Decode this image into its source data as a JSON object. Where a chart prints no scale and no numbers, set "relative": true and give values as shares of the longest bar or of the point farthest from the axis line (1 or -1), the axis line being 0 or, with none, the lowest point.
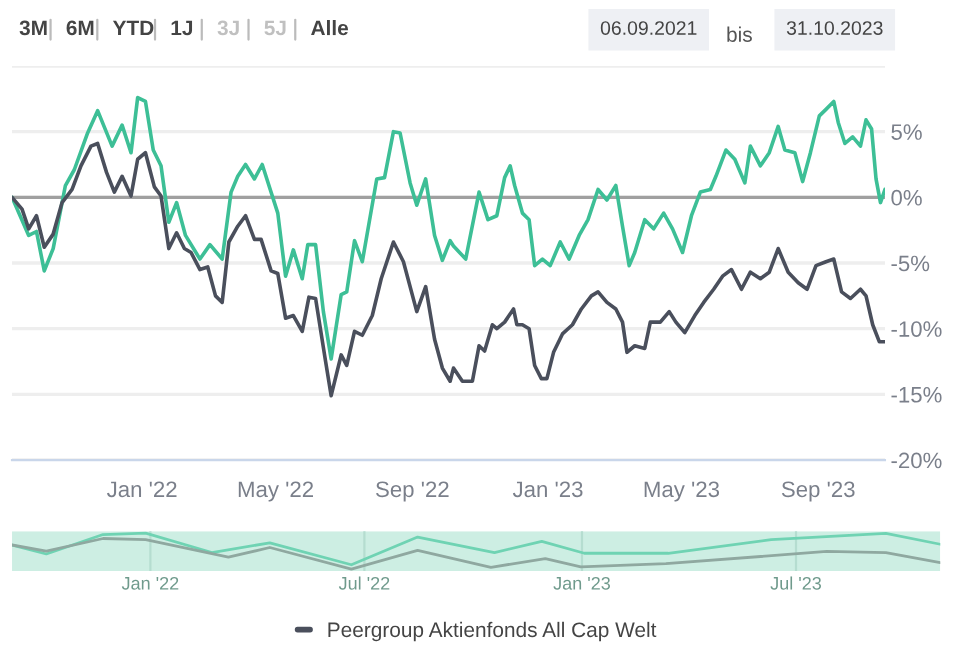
{
  "chart_data": [
    {
      "type": "line",
      "annotations": [
        "3M",
        "6M",
        "YTD",
        "1J",
        "3J",
        "5J",
        "Alle",
        "06.09.2021",
        "bis",
        "31.10.2023"
      ],
      "xlim": [
        "2021-09-06",
        "2023-10-31"
      ],
      "xticks": [
        {
          "value": "2022-01-01",
          "label": "Jan '22"
        },
        {
          "value": "2022-05-01",
          "label": "May '22"
        },
        {
          "value": "2022-09-01",
          "label": "Sep '22"
        },
        {
          "value": "2023-01-01",
          "label": "Jan '23"
        },
        {
          "value": "2023-05-01",
          "label": "May '23"
        },
        {
          "value": "2023-09-01",
          "label": "Sep '23"
        }
      ],
      "ylim": [
        -20,
        10
      ],
      "yticks": [
        {
          "value": -20,
          "label": "-20%"
        },
        {
          "value": -15,
          "label": "-15%"
        },
        {
          "value": -10,
          "label": "-10%"
        },
        {
          "value": -5,
          "label": "-5%"
        },
        {
          "value": 0,
          "label": "0%"
        },
        {
          "value": 5,
          "label": "5%"
        },
        {
          "value": 10,
          "label": null
        }
      ],
      "grid": "y",
      "legend": "bottom",
      "ref_lines": [
        {
          "axis": "y",
          "value": 0,
          "color": "#a0a0a0"
        }
      ],
      "series": [
        {
          "color": "#3dbf96",
          "x": [
            "2021-09-06",
            "2021-09-21",
            "2021-09-28",
            "2021-10-05",
            "2021-10-13",
            "2021-10-24",
            "2021-11-01",
            "2021-11-13",
            "2021-11-22",
            "2021-12-05",
            "2021-12-14",
            "2021-12-22",
            "2021-12-28",
            "2022-01-04",
            "2022-01-11",
            "2022-01-18",
            "2022-01-25",
            "2022-02-01",
            "2022-02-09",
            "2022-02-22",
            "2022-03-03",
            "2022-03-14",
            "2022-03-22",
            "2022-03-28",
            "2022-04-04",
            "2022-04-12",
            "2022-04-19",
            "2022-05-03",
            "2022-05-10",
            "2022-05-17",
            "2022-05-25",
            "2022-05-30",
            "2022-06-06",
            "2022-06-13",
            "2022-06-20",
            "2022-06-29",
            "2022-07-04",
            "2022-07-11",
            "2022-07-18",
            "2022-07-31",
            "2022-08-07",
            "2022-08-15",
            "2022-08-21",
            "2022-08-30",
            "2022-09-05",
            "2022-09-13",
            "2022-09-21",
            "2022-09-28",
            "2022-10-05",
            "2022-10-08",
            "2022-10-19",
            "2022-10-31",
            "2022-11-08",
            "2022-11-16",
            "2022-11-23",
            "2022-11-28",
            "2022-12-02",
            "2022-12-09",
            "2022-12-15",
            "2022-12-20",
            "2022-12-27",
            "2023-01-03",
            "2023-01-12",
            "2023-01-20",
            "2023-01-29",
            "2023-02-06",
            "2023-02-15",
            "2023-02-23",
            "2023-03-03",
            "2023-03-09",
            "2023-03-15",
            "2023-03-20",
            "2023-03-29",
            "2023-04-06",
            "2023-04-15",
            "2023-04-23",
            "2023-05-02",
            "2023-05-10",
            "2023-05-18",
            "2023-05-27",
            "2023-06-01",
            "2023-06-10",
            "2023-06-18",
            "2023-06-27",
            "2023-07-02",
            "2023-07-11",
            "2023-07-19",
            "2023-07-27",
            "2023-08-02",
            "2023-08-11",
            "2023-08-18",
            "2023-08-25",
            "2023-09-02",
            "2023-09-08",
            "2023-09-15",
            "2023-09-19",
            "2023-09-25",
            "2023-10-02",
            "2023-10-09",
            "2023-10-14",
            "2023-10-19",
            "2023-10-23",
            "2023-10-27",
            "2023-10-31"
          ],
          "values": [
            0,
            -2.9,
            -2.6,
            -5.6,
            -3.9,
            0.9,
            2.1,
            4.9,
            6.6,
            3.9,
            5.5,
            3.4,
            7.6,
            7.3,
            3.6,
            2.4,
            -1.9,
            -0.4,
            -2.9,
            -4.7,
            -3.6,
            -4.7,
            0.4,
            1.6,
            2.5,
            1.4,
            2.5,
            -1.2,
            -6.0,
            -4.0,
            -6.2,
            -3.6,
            -3.6,
            -8.7,
            -12.3,
            -7.4,
            -7.2,
            -3.3,
            -4.9,
            1.4,
            1.5,
            5.0,
            4.9,
            1.1,
            -0.6,
            1.4,
            -2.9,
            -4.8,
            -3.3,
            -3.7,
            -4.7,
            0.4,
            -1.7,
            -1.4,
            1.5,
            2.4,
            0.9,
            -1.2,
            -1.7,
            -5.2,
            -4.7,
            -5.2,
            -3.4,
            -4.7,
            -2.9,
            -1.7,
            0.6,
            -0.2,
            0.9,
            -2.2,
            -5.2,
            -4.2,
            -1.7,
            -2.4,
            -1.2,
            -2.4,
            -4.2,
            -1.4,
            0.4,
            0.6,
            1.6,
            3.6,
            2.9,
            1.1,
            3.9,
            2.4,
            3.4,
            5.4,
            3.6,
            3.4,
            1.2,
            3.4,
            6.2,
            6.7,
            7.3,
            5.7,
            4.1,
            4.6,
            3.9,
            5.9,
            5.2,
            1.4,
            -0.4,
            0.6
          ]
        },
        {
          "name": "Peergroup Aktienfonds All Cap Welt",
          "color": "#4a4f5c",
          "x": [
            "2021-09-06",
            "2021-09-15",
            "2021-09-21",
            "2021-09-28",
            "2021-10-05",
            "2021-10-13",
            "2021-10-21",
            "2021-10-30",
            "2021-11-07",
            "2021-11-16",
            "2021-11-22",
            "2021-11-30",
            "2021-12-07",
            "2021-12-14",
            "2021-12-22",
            "2021-12-28",
            "2022-01-04",
            "2022-01-12",
            "2022-01-18",
            "2022-01-25",
            "2022-02-01",
            "2022-02-08",
            "2022-02-14",
            "2022-02-22",
            "2022-03-01",
            "2022-03-08",
            "2022-03-14",
            "2022-03-20",
            "2022-03-28",
            "2022-04-04",
            "2022-04-12",
            "2022-04-18",
            "2022-04-27",
            "2022-05-03",
            "2022-05-10",
            "2022-05-17",
            "2022-05-25",
            "2022-05-31",
            "2022-06-06",
            "2022-06-15",
            "2022-06-20",
            "2022-06-29",
            "2022-07-04",
            "2022-07-11",
            "2022-07-18",
            "2022-07-27",
            "2022-08-04",
            "2022-08-15",
            "2022-08-24",
            "2022-09-05",
            "2022-09-13",
            "2022-09-21",
            "2022-09-28",
            "2022-10-05",
            "2022-10-08",
            "2022-10-16",
            "2022-10-25",
            "2022-10-31",
            "2022-11-05",
            "2022-11-12",
            "2022-11-16",
            "2022-11-23",
            "2022-12-01",
            "2022-12-04",
            "2022-12-09",
            "2022-12-15",
            "2022-12-20",
            "2022-12-26",
            "2022-12-31",
            "2023-01-06",
            "2023-01-14",
            "2023-01-23",
            "2023-01-31",
            "2023-02-09",
            "2023-02-15",
            "2023-02-23",
            "2023-03-03",
            "2023-03-09",
            "2023-03-13",
            "2023-03-20",
            "2023-03-29",
            "2023-04-03",
            "2023-04-12",
            "2023-04-20",
            "2023-04-26",
            "2023-05-04",
            "2023-05-13",
            "2023-05-21",
            "2023-05-30",
            "2023-06-07",
            "2023-06-15",
            "2023-06-24",
            "2023-07-02",
            "2023-07-11",
            "2023-07-19",
            "2023-07-27",
            "2023-08-05",
            "2023-08-14",
            "2023-08-22",
            "2023-08-30",
            "2023-09-08",
            "2023-09-15",
            "2023-09-22",
            "2023-09-30",
            "2023-10-09",
            "2023-10-14",
            "2023-10-20",
            "2023-10-26",
            "2023-10-31"
          ],
          "values": [
            0,
            -0.9,
            -2.4,
            -1.4,
            -3.8,
            -2.8,
            -0.4,
            0.6,
            2.4,
            3.9,
            4.1,
            1.9,
            0.4,
            1.6,
            0.1,
            2.9,
            3.4,
            0.8,
            0.1,
            -3.9,
            -2.7,
            -3.9,
            -4.2,
            -5.5,
            -5.3,
            -7.5,
            -8.0,
            -3.4,
            -2.2,
            -1.4,
            -3.2,
            -3.2,
            -5.6,
            -5.8,
            -9.2,
            -9.0,
            -10.2,
            -7.6,
            -7.7,
            -12.5,
            -15.1,
            -12.0,
            -12.8,
            -10.2,
            -10.5,
            -9.0,
            -6.2,
            -3.4,
            -4.9,
            -8.7,
            -6.8,
            -10.8,
            -13.0,
            -14.0,
            -13.0,
            -14.0,
            -14.0,
            -11.3,
            -11.7,
            -9.7,
            -10.0,
            -9.5,
            -8.5,
            -9.7,
            -9.7,
            -10.0,
            -12.8,
            -13.8,
            -13.8,
            -11.8,
            -10.4,
            -9.7,
            -8.5,
            -7.5,
            -7.2,
            -8.0,
            -8.5,
            -9.5,
            -11.8,
            -11.3,
            -11.5,
            -9.5,
            -9.5,
            -8.7,
            -9.5,
            -10.3,
            -9.0,
            -8.0,
            -7.0,
            -6.0,
            -5.5,
            -7.0,
            -5.7,
            -6.2,
            -5.7,
            -3.9,
            -5.7,
            -6.5,
            -7.0,
            -5.2,
            -4.9,
            -4.7,
            -7.2,
            -7.7,
            -7.0,
            -7.5,
            -9.7,
            -11.0,
            -11.0
          ]
        }
      ]
    },
    {
      "type": "line",
      "relative": true,
      "tick_labels": "x",
      "xlim": [
        "2021-09-06",
        "2023-10-31"
      ],
      "xticks": [
        {
          "value": "2022-01-01",
          "label": "Jan '22"
        },
        {
          "value": "2022-07-01",
          "label": "Jul '22"
        },
        {
          "value": "2023-01-01",
          "label": "Jan '23"
        },
        {
          "value": "2023-07-01",
          "label": "Jul '23"
        }
      ],
      "grid": "x",
      "bands": [
        {
          "axis": "x",
          "from": "2021-09-06",
          "to": "2023-10-31",
          "color": "#cdeee3"
        }
      ],
      "series": [
        {
          "color": "#6fd3b3",
          "x": [
            "2021-09-06",
            "2021-10-05",
            "2021-11-22",
            "2021-12-28",
            "2022-02-22",
            "2022-04-12",
            "2022-06-20",
            "2022-08-15",
            "2022-10-19",
            "2022-11-28",
            "2023-01-03",
            "2023-03-15",
            "2023-06-10",
            "2023-09-15",
            "2023-10-31"
          ],
          "values": [
            0.67,
            0.42,
            0.96,
            1,
            0.46,
            0.73,
            0.12,
            0.89,
            0.46,
            0.77,
            0.44,
            0.44,
            0.82,
            0.99,
            0.69
          ]
        },
        {
          "color": "#8fa8a0",
          "x": [
            "2021-09-06",
            "2021-10-05",
            "2021-11-22",
            "2021-12-28",
            "2022-03-08",
            "2022-04-12",
            "2022-06-20",
            "2022-08-15",
            "2022-10-16",
            "2022-12-01",
            "2022-12-31",
            "2023-03-13",
            "2023-07-27",
            "2023-09-15",
            "2023-10-31"
          ],
          "values": [
            0.67,
            0.5,
            0.85,
            0.82,
            0.33,
            0.6,
            0,
            0.52,
            0.05,
            0.29,
            0.06,
            0.15,
            0.49,
            0.46,
            0.18
          ]
        }
      ]
    }
  ]
}
